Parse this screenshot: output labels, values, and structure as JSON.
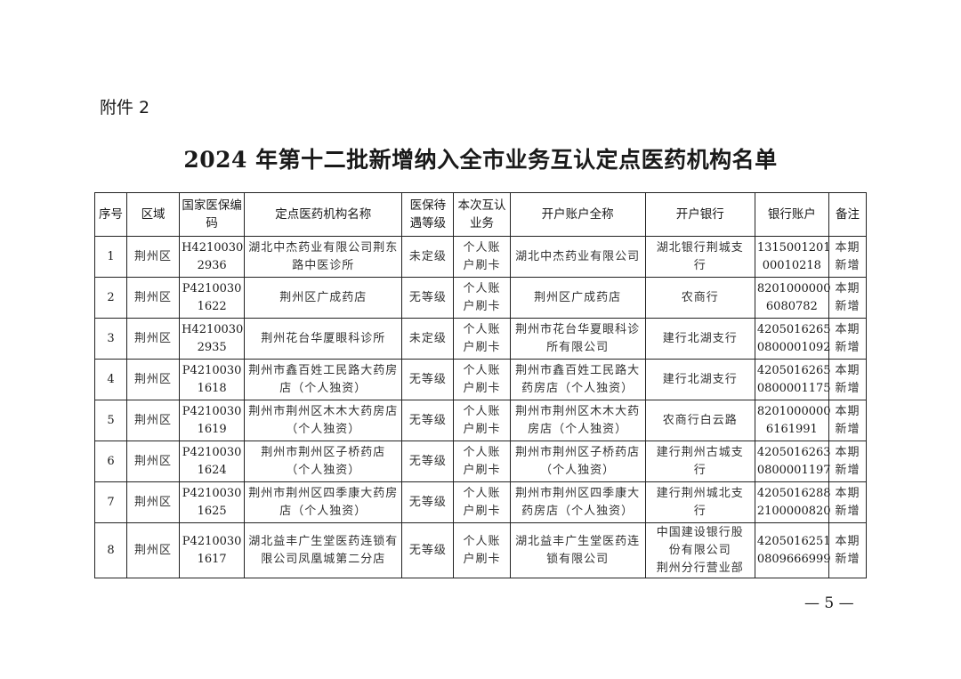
{
  "attachment_label": "附件 2",
  "title": "2024 年第十二批新增纳入全市业务互认定点医药机构名单",
  "table": {
    "headers": [
      [
        "序号"
      ],
      [
        "区域"
      ],
      [
        "国家医保",
        "编码"
      ],
      [
        "定点医药机构名称"
      ],
      [
        "医保待",
        "遇等级"
      ],
      [
        "本次互",
        "认业务"
      ],
      [
        "开户账户全称"
      ],
      [
        "开户银行"
      ],
      [
        "银行账户"
      ],
      [
        "备注"
      ]
    ],
    "rows": [
      [
        [
          "1"
        ],
        [
          "荆州区"
        ],
        [
          "H4210030",
          "2936"
        ],
        [
          "湖北中杰药业有限公司荆东",
          "路中医诊所"
        ],
        [
          "未定级"
        ],
        [
          "个人账",
          "户刷卡"
        ],
        [
          "湖北中杰药业有限公司"
        ],
        [
          "湖北银行荆城支",
          "行"
        ],
        [
          "1315001201",
          "00010218"
        ],
        [
          "本期",
          "新增"
        ]
      ],
      [
        [
          "2"
        ],
        [
          "荆州区"
        ],
        [
          "P4210030",
          "1622"
        ],
        [
          "荆州区广成药店"
        ],
        [
          "无等级"
        ],
        [
          "个人账",
          "户刷卡"
        ],
        [
          "荆州区广成药店"
        ],
        [
          "农商行"
        ],
        [
          "8201000000",
          "6080782"
        ],
        [
          "本期",
          "新增"
        ]
      ],
      [
        [
          "3"
        ],
        [
          "荆州区"
        ],
        [
          "H4210030",
          "2935"
        ],
        [
          "荆州花台华厦眼科诊所"
        ],
        [
          "未定级"
        ],
        [
          "个人账",
          "户刷卡"
        ],
        [
          "荆州市花台华夏眼科诊",
          "所有限公司"
        ],
        [
          "建行北湖支行"
        ],
        [
          "4205016265",
          "0800001092"
        ],
        [
          "本期",
          "新增"
        ]
      ],
      [
        [
          "4"
        ],
        [
          "荆州区"
        ],
        [
          "P4210030",
          "1618"
        ],
        [
          "荆州市鑫百姓工民路大药房",
          "店（个人独资）"
        ],
        [
          "无等级"
        ],
        [
          "个人账",
          "户刷卡"
        ],
        [
          "荆州市鑫百姓工民路大",
          "药房店（个人独资）"
        ],
        [
          "建行北湖支行"
        ],
        [
          "4205016265",
          "0800001175"
        ],
        [
          "本期",
          "新增"
        ]
      ],
      [
        [
          "5"
        ],
        [
          "荆州区"
        ],
        [
          "P4210030",
          "1619"
        ],
        [
          "荆州市荆州区木木大药房店",
          "（个人独资）"
        ],
        [
          "无等级"
        ],
        [
          "个人账",
          "户刷卡"
        ],
        [
          "荆州市荆州区木木大药",
          "房店（个人独资）"
        ],
        [
          "农商行白云路"
        ],
        [
          "8201000000",
          "6161991"
        ],
        [
          "本期",
          "新增"
        ]
      ],
      [
        [
          "6"
        ],
        [
          "荆州区"
        ],
        [
          "P4210030",
          "1624"
        ],
        [
          "荆州市荆州区子桥药店",
          "（个人独资）"
        ],
        [
          "无等级"
        ],
        [
          "个人账",
          "户刷卡"
        ],
        [
          "荆州市荆州区子桥药店",
          "（个人独资）"
        ],
        [
          "建行荆州古城支",
          "行"
        ],
        [
          "4205016263",
          "0800001197"
        ],
        [
          "本期",
          "新增"
        ]
      ],
      [
        [
          "7"
        ],
        [
          "荆州区"
        ],
        [
          "P4210030",
          "1625"
        ],
        [
          "荆州市荆州区四季康大药房",
          "店（个人独资）"
        ],
        [
          "无等级"
        ],
        [
          "个人账",
          "户刷卡"
        ],
        [
          "荆州市荆州区四季康大",
          "药房店（个人独资）"
        ],
        [
          "建行荆州城北支",
          "行"
        ],
        [
          "4205016288",
          "2100000820"
        ],
        [
          "本期",
          "新增"
        ]
      ],
      [
        [
          "8"
        ],
        [
          "荆州区"
        ],
        [
          "P4210030",
          "1617"
        ],
        [
          "湖北益丰广生堂医药连锁有",
          "限公司凤凰城第二分店"
        ],
        [
          "无等级"
        ],
        [
          "个人账",
          "户刷卡"
        ],
        [
          "湖北益丰广生堂医药连",
          "锁有限公司"
        ],
        [
          "中国建设银行股",
          "份有限公司",
          "荆州分行营业部"
        ],
        [
          "4205016251",
          "0809666999"
        ],
        [
          "本期",
          "新增"
        ]
      ]
    ]
  },
  "page_number": "— 5 —"
}
